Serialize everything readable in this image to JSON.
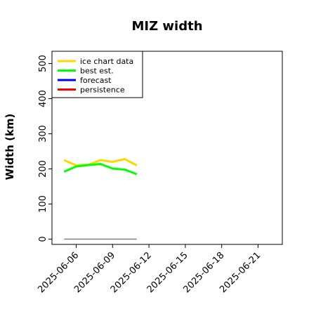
{
  "chart_data": {
    "type": "line",
    "title": "MIZ width",
    "ylabel": "Width (km)",
    "xlabel": "",
    "ylim": [
      -15,
      535
    ],
    "xlim": [
      "2025-06-04",
      "2025-06-23"
    ],
    "yticks": [
      0,
      100,
      200,
      300,
      400,
      500
    ],
    "xticks": [
      "2025-06-06",
      "2025-06-09",
      "2025-06-12",
      "2025-06-15",
      "2025-06-18",
      "2025-06-21"
    ],
    "highlight_tick": "2025-06-12",
    "highlight_color": "#228b22",
    "legend_position": "top-left",
    "series": [
      {
        "name": "ice chart data",
        "color": "#ffd700",
        "x": [
          "2025-06-05",
          "2025-06-06",
          "2025-06-07",
          "2025-06-08",
          "2025-06-09",
          "2025-06-10",
          "2025-06-11"
        ],
        "values": [
          225,
          210,
          212,
          225,
          220,
          228,
          210
        ]
      },
      {
        "name": "best est.",
        "color": "#00ff00",
        "x": [
          "2025-06-05",
          "2025-06-06",
          "2025-06-07",
          "2025-06-08",
          "2025-06-09",
          "2025-06-10",
          "2025-06-11"
        ],
        "values": [
          192,
          207,
          211,
          214,
          201,
          198,
          185
        ]
      },
      {
        "name": "forecast",
        "color": "#0000ff",
        "x": [],
        "values": []
      },
      {
        "name": "persistence",
        "color": "#ff0000",
        "x": [],
        "values": []
      },
      {
        "color": "#808080",
        "legend": false,
        "x": [
          "2025-06-05",
          "2025-06-11"
        ],
        "values": [
          0,
          0
        ]
      }
    ]
  }
}
